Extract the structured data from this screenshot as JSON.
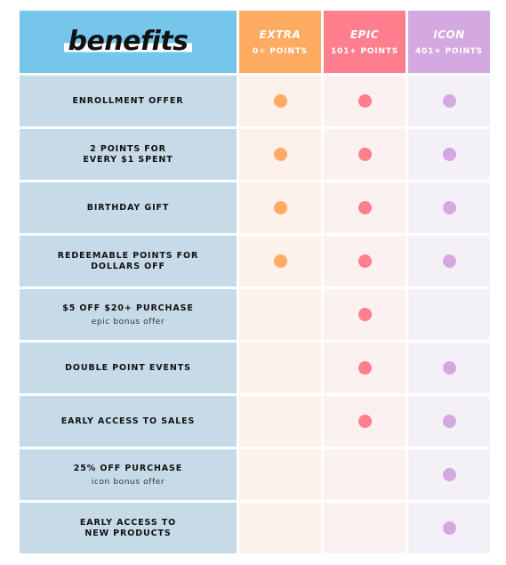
{
  "header": {
    "title": "benefits",
    "tiers": [
      {
        "name": "EXTRA",
        "points": "0+ POINTS",
        "color": "#ffab61",
        "cell_color": "#fdf1eb",
        "dot_color": "#ffab61"
      },
      {
        "name": "EPIC",
        "points": "101+ POINTS",
        "color": "#ff7f8e",
        "cell_color": "#fbf1f1",
        "dot_color": "#ff7f8e"
      },
      {
        "name": "ICON",
        "points": "401+ POINTS",
        "color": "#d4a8e0",
        "cell_color": "#f4f0f7",
        "dot_color": "#d4a8e0"
      }
    ]
  },
  "colors": {
    "label_bg": "#c6dae8",
    "header_bg": "#75c6ea"
  },
  "rows": [
    {
      "label": "ENROLLMENT OFFER",
      "sub": "",
      "tiers": [
        true,
        true,
        true
      ]
    },
    {
      "label": "2 POINTS FOR\nEVERY $1 SPENT",
      "sub": "",
      "tiers": [
        true,
        true,
        true
      ]
    },
    {
      "label": "BIRTHDAY GIFT",
      "sub": "",
      "tiers": [
        true,
        true,
        true
      ]
    },
    {
      "label": "REDEEMABLE POINTS FOR\nDOLLARS OFF",
      "sub": "",
      "tiers": [
        true,
        true,
        true
      ]
    },
    {
      "label": "$5 OFF $20+ PURCHASE",
      "sub": "epic bonus offer",
      "tiers": [
        false,
        true,
        false
      ]
    },
    {
      "label": "DOUBLE POINT EVENTS",
      "sub": "",
      "tiers": [
        false,
        true,
        true
      ]
    },
    {
      "label": "EARLY ACCESS TO SALES",
      "sub": "",
      "tiers": [
        false,
        true,
        true
      ]
    },
    {
      "label": "25% OFF PURCHASE",
      "sub": "icon bonus offer",
      "tiers": [
        false,
        false,
        true
      ]
    },
    {
      "label": "EARLY ACCESS TO\nNEW PRODUCTS",
      "sub": "",
      "tiers": [
        false,
        false,
        true
      ]
    }
  ]
}
